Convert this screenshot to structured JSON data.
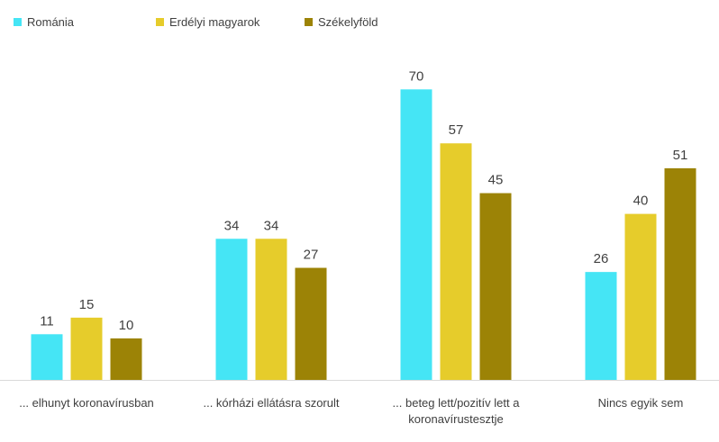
{
  "chart_data": {
    "type": "bar",
    "title": "",
    "xlabel": "",
    "ylabel": "",
    "ylim": [
      0,
      75
    ],
    "grid": false,
    "legend_position": "top-left",
    "categories": [
      [
        "... elhunyt koronavírusban"
      ],
      [
        "... kórházi ellátásra szorult"
      ],
      [
        "... beteg lett/pozitív lett a",
        "koronavírustesztje"
      ],
      [
        "Nincs egyik sem"
      ]
    ],
    "series": [
      {
        "name": "Románia",
        "color": "#45E5F5",
        "values": [
          11,
          34,
          70,
          26
        ]
      },
      {
        "name": "Erdélyi magyarok",
        "color": "#E6CC2B",
        "values": [
          15,
          34,
          57,
          40
        ]
      },
      {
        "name": "Székelyföld",
        "color": "#9C8306",
        "values": [
          10,
          27,
          45,
          51
        ]
      }
    ]
  }
}
